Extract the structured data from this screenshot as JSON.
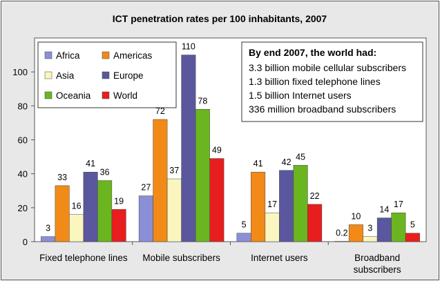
{
  "chart_data": {
    "type": "bar",
    "title": "ICT penetration rates per 100 inhabitants, 2007",
    "categories": [
      [
        "Fixed telephone lines"
      ],
      [
        "Mobile subscribers"
      ],
      [
        "Internet users"
      ],
      [
        "Broadband",
        "subscribers"
      ]
    ],
    "ylim": [
      0,
      120
    ],
    "yticks": [
      0,
      20,
      40,
      60,
      80,
      100
    ],
    "grid": false,
    "legend_position": "top-left",
    "series": [
      {
        "name": "Africa",
        "color": "#8b8fd6",
        "values": [
          3,
          27,
          5,
          0.2
        ],
        "labels": [
          "3",
          "27",
          "5",
          "0.2"
        ]
      },
      {
        "name": "Americas",
        "color": "#f28a17",
        "values": [
          33,
          72,
          41,
          10
        ],
        "labels": [
          "33",
          "72",
          "41",
          "10"
        ]
      },
      {
        "name": "Asia",
        "color": "#fbf6bf",
        "values": [
          16,
          37,
          17,
          3
        ],
        "labels": [
          "16",
          "37",
          "17",
          "3"
        ]
      },
      {
        "name": "Europe",
        "color": "#5a579e",
        "values": [
          41,
          110,
          42,
          14
        ],
        "labels": [
          "41",
          "110",
          "42",
          "14"
        ]
      },
      {
        "name": "Oceania",
        "color": "#6bb520",
        "values": [
          36,
          78,
          45,
          17
        ],
        "labels": [
          "36",
          "78",
          "45",
          "17"
        ]
      },
      {
        "name": "World",
        "color": "#e81e1e",
        "values": [
          19,
          49,
          22,
          5
        ],
        "labels": [
          "19",
          "49",
          "22",
          "5"
        ]
      }
    ],
    "annotation": {
      "title": "By end 2007, the world had:",
      "lines": [
        "3.3 billion mobile cellular subscribers",
        "1.3 billion fixed telephone lines",
        "1.5 billion Internet users",
        "336 million broadband subscribers"
      ]
    }
  }
}
